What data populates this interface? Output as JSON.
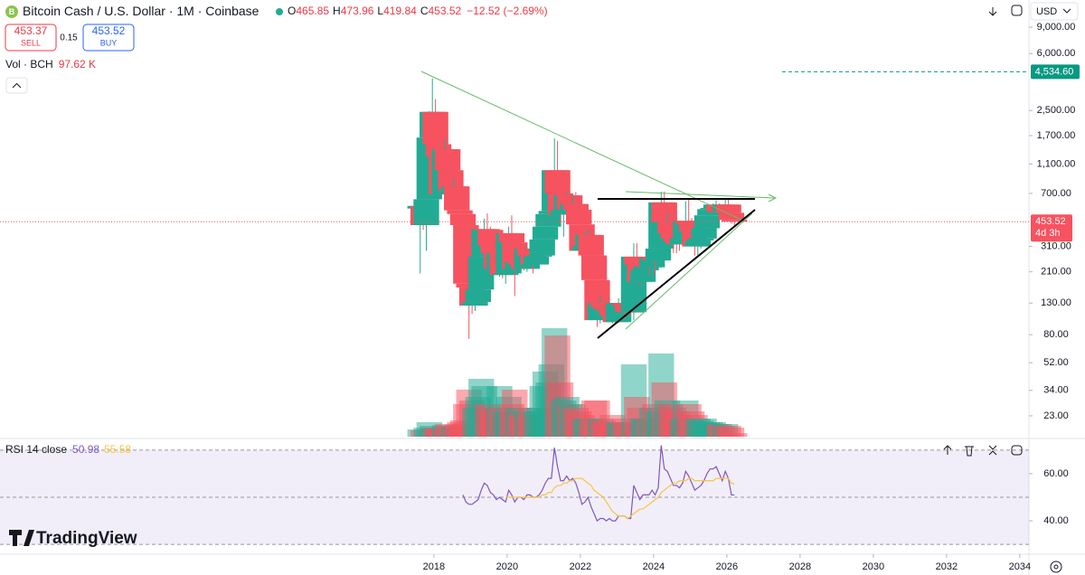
{
  "header": {
    "symbol": "Bitcoin Cash / U.S. Dollar · 1M · Coinbase",
    "o": "O",
    "h": "H",
    "l": "L",
    "c": "C",
    "change": "−12.52 (−2.69%)",
    "sell_price": "453.37",
    "sell": "SELL",
    "spread": "0.15",
    "buy_price": "453.52",
    "buy": "BUY",
    "currency": "USD",
    "logo": "TradingView"
  },
  "chart_data": [
    {
      "type": "candlestick",
      "vol_title": "Vol · BCH",
      "volume_last_label": "97.62 K",
      "countdown": "4d 3h",
      "up_color": "#22ab94",
      "down_color": "#f7525f",
      "log_scale": true,
      "grid": false,
      "xlim": [
        2006.15,
        2034.25
      ],
      "xticks": [
        2018,
        2020,
        2022,
        2024,
        2026,
        2028,
        2030,
        2032,
        2034
      ],
      "ylim": [
        16.7,
        13650
      ],
      "yticks": [
        {
          "value": 9000,
          "label": "9,000.00"
        },
        {
          "value": 6000,
          "label": "6,000.00"
        },
        {
          "value": 2500,
          "label": "2,500.00"
        },
        {
          "value": 1700,
          "label": "1,700.00"
        },
        {
          "value": 1100,
          "label": "1,100.00"
        },
        {
          "value": 700,
          "label": "700.00"
        },
        {
          "value": 310,
          "label": "310.00"
        },
        {
          "value": 210,
          "label": "210.00"
        },
        {
          "value": 130,
          "label": "130.00"
        },
        {
          "value": 80,
          "label": "80.00"
        },
        {
          "value": 52,
          "label": "52.00"
        },
        {
          "value": 34,
          "label": "34.00"
        },
        {
          "value": 23,
          "label": "23.00"
        }
      ],
      "level": {
        "value": 4534.6,
        "label": "4,534.60",
        "color": "#089981"
      },
      "vlim": [
        0,
        3000
      ],
      "x": [
        2017.625,
        2017.708,
        2017.792,
        2017.875,
        2017.958,
        2018.042,
        2018.125,
        2018.208,
        2018.292,
        2018.375,
        2018.458,
        2018.542,
        2018.625,
        2018.708,
        2018.792,
        2018.875,
        2018.958,
        2019.042,
        2019.125,
        2019.208,
        2019.292,
        2019.375,
        2019.458,
        2019.542,
        2019.625,
        2019.708,
        2019.792,
        2019.875,
        2019.958,
        2020.042,
        2020.125,
        2020.208,
        2020.292,
        2020.375,
        2020.458,
        2020.542,
        2020.625,
        2020.708,
        2020.792,
        2020.875,
        2020.958,
        2021.042,
        2021.125,
        2021.208,
        2021.292,
        2021.375,
        2021.458,
        2021.542,
        2021.625,
        2021.708,
        2021.792,
        2021.875,
        2021.958,
        2022.042,
        2022.125,
        2022.208,
        2022.292,
        2022.375,
        2022.458,
        2022.542,
        2022.625,
        2022.708,
        2022.792,
        2022.875,
        2022.958,
        2023.042,
        2023.125,
        2023.208,
        2023.292,
        2023.375,
        2023.458,
        2023.542,
        2023.625,
        2023.708,
        2023.792,
        2023.875,
        2023.958,
        2024.042,
        2024.125,
        2024.208,
        2024.292,
        2024.375,
        2024.458,
        2024.542,
        2024.625,
        2024.708,
        2024.792,
        2024.875,
        2024.958,
        2025.042,
        2025.125,
        2025.208,
        2025.292,
        2025.375,
        2025.458,
        2025.542,
        2025.625,
        2025.708,
        2025.792,
        2025.875,
        2025.958,
        2026.042,
        2026.125,
        2026.208
      ],
      "open": [
        555,
        578,
        430,
        640,
        1650,
        2450,
        1490,
        1240,
        690,
        1380,
        1000,
        730,
        780,
        540,
        510,
        430,
        175,
        165,
        125,
        132,
        160,
        265,
        405,
        400,
        315,
        280,
        220,
        280,
        200,
        205,
        380,
        330,
        220,
        245,
        235,
        220,
        300,
        270,
        235,
        265,
        270,
        345,
        420,
        510,
        535,
        1000,
        700,
        505,
        545,
        680,
        545,
        595,
        545,
        435,
        290,
        310,
        370,
        270,
        185,
        100,
        130,
        122,
        118,
        115,
        107,
        97,
        130,
        130,
        125,
        114,
        113,
        265,
        235,
        180,
        215,
        230,
        225,
        260,
        250,
        300,
        610,
        450,
        450,
        380,
        350,
        330,
        320,
        350,
        460,
        435,
        390,
        310,
        340,
        350,
        410,
        500,
        550,
        560,
        590,
        530,
        520,
        590,
        520,
        465.85
      ],
      "high": [
        1091,
        980,
        660,
        2477,
        4091,
        2980,
        1600,
        1450,
        1600,
        1730,
        1050,
        890,
        800,
        650,
        550,
        640,
        210,
        170,
        155,
        165,
        330,
        475,
        515,
        420,
        345,
        330,
        310,
        305,
        225,
        420,
        500,
        360,
        290,
        285,
        265,
        310,
        340,
        285,
        290,
        330,
        385,
        630,
        750,
        620,
        1630,
        1570,
        720,
        545,
        725,
        730,
        680,
        715,
        575,
        440,
        385,
        400,
        405,
        280,
        195,
        145,
        150,
        130,
        128,
        130,
        112,
        140,
        145,
        138,
        140,
        120,
        325,
        325,
        240,
        225,
        260,
        270,
        290,
        290,
        410,
        720,
        720,
        520,
        480,
        440,
        400,
        340,
        370,
        620,
        640,
        480,
        400,
        380,
        390,
        450,
        520,
        580,
        600,
        630,
        600,
        560,
        640,
        640,
        560,
        473.96
      ],
      "low": [
        205,
        400,
        290,
        600,
        1300,
        1450,
        890,
        660,
        640,
        950,
        650,
        690,
        470,
        400,
        410,
        150,
        75,
        110,
        115,
        125,
        160,
        250,
        370,
        270,
        275,
        205,
        195,
        190,
        175,
        200,
        310,
        145,
        205,
        220,
        215,
        210,
        265,
        205,
        225,
        245,
        240,
        330,
        410,
        450,
        530,
        510,
        440,
        360,
        530,
        500,
        515,
        520,
        360,
        250,
        265,
        285,
        260,
        150,
        90,
        95,
        120,
        105,
        108,
        95,
        93,
        96,
        118,
        100,
        110,
        108,
        100,
        225,
        170,
        175,
        200,
        200,
        210,
        200,
        240,
        300,
        390,
        350,
        350,
        280,
        280,
        290,
        320,
        330,
        380,
        380,
        270,
        270,
        300,
        350,
        400,
        480,
        510,
        540,
        480,
        460,
        500,
        500,
        440,
        419.84
      ],
      "close": [
        578,
        430,
        640,
        1650,
        2450,
        1490,
        1240,
        690,
        1380,
        1000,
        730,
        780,
        540,
        510,
        430,
        175,
        165,
        125,
        132,
        160,
        265,
        405,
        400,
        315,
        280,
        220,
        280,
        200,
        205,
        380,
        330,
        220,
        245,
        235,
        220,
        300,
        270,
        235,
        265,
        270,
        345,
        420,
        510,
        535,
        1000,
        700,
        505,
        545,
        680,
        545,
        595,
        545,
        435,
        290,
        310,
        370,
        270,
        185,
        100,
        130,
        122,
        118,
        115,
        107,
        97,
        130,
        130,
        125,
        114,
        113,
        265,
        235,
        180,
        215,
        230,
        225,
        260,
        250,
        300,
        610,
        450,
        450,
        380,
        350,
        330,
        320,
        350,
        460,
        435,
        390,
        310,
        340,
        350,
        410,
        500,
        550,
        560,
        590,
        530,
        520,
        590,
        520,
        466,
        453.52
      ],
      "volume": [
        200,
        180,
        250,
        400,
        300,
        250,
        200,
        250,
        320,
        350,
        300,
        280,
        330,
        400,
        450,
        900,
        1300,
        1000,
        800,
        1100,
        1600,
        1400,
        900,
        800,
        600,
        700,
        1400,
        800,
        700,
        1100,
        900,
        1300,
        800,
        600,
        500,
        700,
        800,
        600,
        700,
        800,
        1400,
        1800,
        1500,
        2000,
        3000,
        2800,
        1500,
        1000,
        1100,
        900,
        900,
        800,
        700,
        600,
        500,
        500,
        450,
        1000,
        1000,
        500,
        450,
        400,
        350,
        600,
        400,
        400,
        350,
        500,
        400,
        350,
        2000,
        1100,
        800,
        500,
        500,
        500,
        800,
        900,
        700,
        2300,
        1500,
        1000,
        900,
        800,
        700,
        600,
        500,
        1000,
        900,
        700,
        600,
        500,
        450,
        500,
        400,
        400,
        400,
        350,
        350,
        300,
        350,
        300,
        250,
        97.62
      ]
    },
    {
      "type": "line",
      "title": "RSI 14 close",
      "ylim": [
        27,
        73
      ],
      "bands": [
        70,
        50,
        30
      ],
      "band_color": "#7e57c2",
      "yticks": [
        {
          "value": 60,
          "label": "60.00"
        },
        {
          "value": 40,
          "label": "40.00"
        }
      ],
      "series": [
        {
          "color": "#7e57c2",
          "values": [
            null,
            null,
            null,
            null,
            null,
            null,
            null,
            null,
            null,
            null,
            null,
            null,
            null,
            null,
            51,
            48,
            47,
            47,
            48,
            49,
            53,
            56,
            55,
            52,
            51,
            49,
            50,
            49,
            48,
            53,
            51,
            48,
            50,
            50,
            49,
            51,
            51,
            50,
            50,
            51,
            53,
            56,
            58,
            58,
            71,
            63,
            57,
            57,
            59,
            57,
            58,
            56,
            52,
            47,
            48,
            50,
            46,
            43,
            40,
            41,
            41,
            40,
            41,
            40,
            40,
            42,
            42,
            42,
            41,
            41,
            55,
            52,
            49,
            51,
            51,
            51,
            53,
            51,
            54,
            72,
            62,
            61,
            58,
            55,
            55,
            54,
            56,
            61,
            59,
            56,
            53,
            54,
            55,
            57,
            60,
            62,
            62,
            63,
            60,
            57,
            61,
            58,
            51,
            50.98
          ]
        },
        {
          "color": "#f5c542",
          "values": [
            null,
            null,
            null,
            null,
            null,
            null,
            null,
            null,
            null,
            null,
            null,
            null,
            null,
            null,
            null,
            null,
            null,
            null,
            null,
            null,
            null,
            null,
            null,
            null,
            null,
            null,
            null,
            null,
            50,
            50,
            50,
            50,
            50,
            50,
            50,
            50,
            50,
            50,
            50,
            50,
            51,
            51,
            52,
            52,
            54,
            55,
            55,
            56,
            56,
            57,
            57,
            58,
            58,
            58,
            57,
            56,
            55,
            53,
            52,
            51,
            50,
            48,
            46,
            44,
            43,
            42,
            42,
            42,
            41,
            42,
            43,
            44,
            45,
            45,
            46,
            47,
            48,
            49,
            50,
            52,
            53,
            54,
            55,
            56,
            56,
            57,
            57,
            57,
            58,
            58,
            57,
            57,
            57,
            57,
            57,
            57,
            57,
            58,
            58,
            58,
            58,
            58,
            56,
            55.58
          ]
        }
      ]
    }
  ]
}
